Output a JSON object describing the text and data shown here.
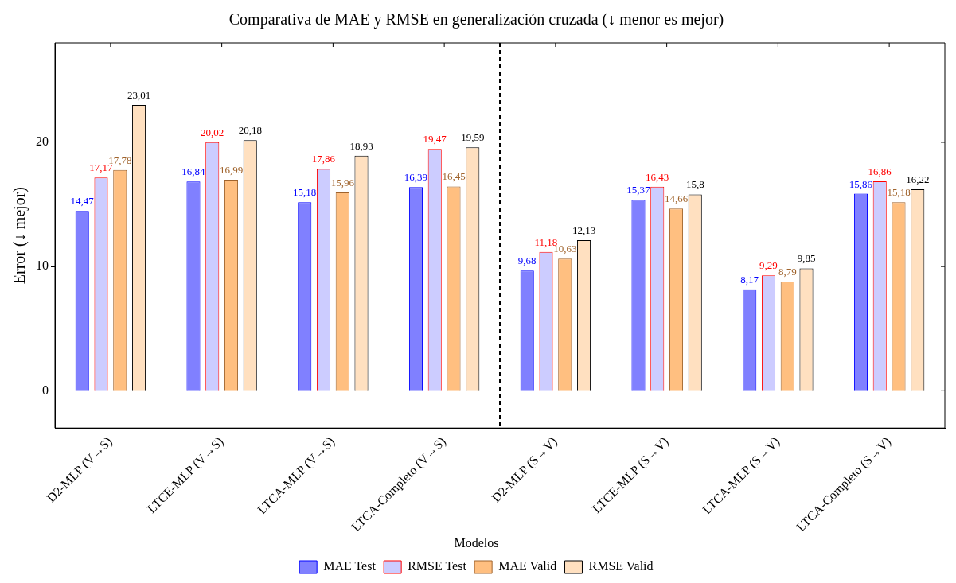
{
  "chart_data": {
    "type": "bar",
    "title": "Comparativa de MAE y RMSE en generalización cruzada (↓ menor es mejor)",
    "ylabel": "Error (↓ mejor)",
    "legend_title": "Modelos",
    "categories": [
      "D2-MLP (V→S)",
      "LTCE-MLP (V→S)",
      "LTCA-MLP (V→S)",
      "LTCA-Completo (V→S)",
      "D2-MLP (S→V)",
      "LTCE-MLP (S→V)",
      "LTCA-MLP (S→V)",
      "LTCA-Completo (S→V)"
    ],
    "series": [
      {
        "name": "MAE Test",
        "color": "#8080ff",
        "values": [
          14.47,
          16.84,
          15.18,
          16.39,
          9.68,
          15.37,
          8.17,
          15.86
        ],
        "value_labels": [
          "14,47",
          "16,84",
          "15,18",
          "16,39",
          "9,68",
          "15,37",
          "8,17",
          "15,86"
        ]
      },
      {
        "name": "RMSE Test",
        "color": "#ccccff",
        "values": [
          17.17,
          20.02,
          17.86,
          19.47,
          11.18,
          16.43,
          9.29,
          16.86
        ],
        "value_labels": [
          "17,17",
          "20,02",
          "17,86",
          "19,47",
          "11,18",
          "16,43",
          "9,29",
          "16,86"
        ]
      },
      {
        "name": "MAE Valid",
        "color": "#ffbf80",
        "values": [
          17.78,
          16.99,
          15.96,
          16.45,
          10.63,
          14.66,
          8.79,
          15.18
        ],
        "value_labels": [
          "17,78",
          "16,99",
          "15,96",
          "16,45",
          "10,63",
          "14,66",
          "8,79",
          "15,18"
        ]
      },
      {
        "name": "RMSE Valid",
        "color": "#ffe0c0",
        "values": [
          23.01,
          20.18,
          18.93,
          19.59,
          12.13,
          15.8,
          9.85,
          16.22
        ],
        "value_labels": [
          "23,01",
          "20,18",
          "18,93",
          "19,59",
          "12,13",
          "15,8",
          "9,85",
          "16,22"
        ]
      }
    ],
    "ylim": [
      -3,
      28
    ],
    "yticks": [
      0,
      10,
      20
    ],
    "grid": false,
    "legend": "bottom"
  }
}
